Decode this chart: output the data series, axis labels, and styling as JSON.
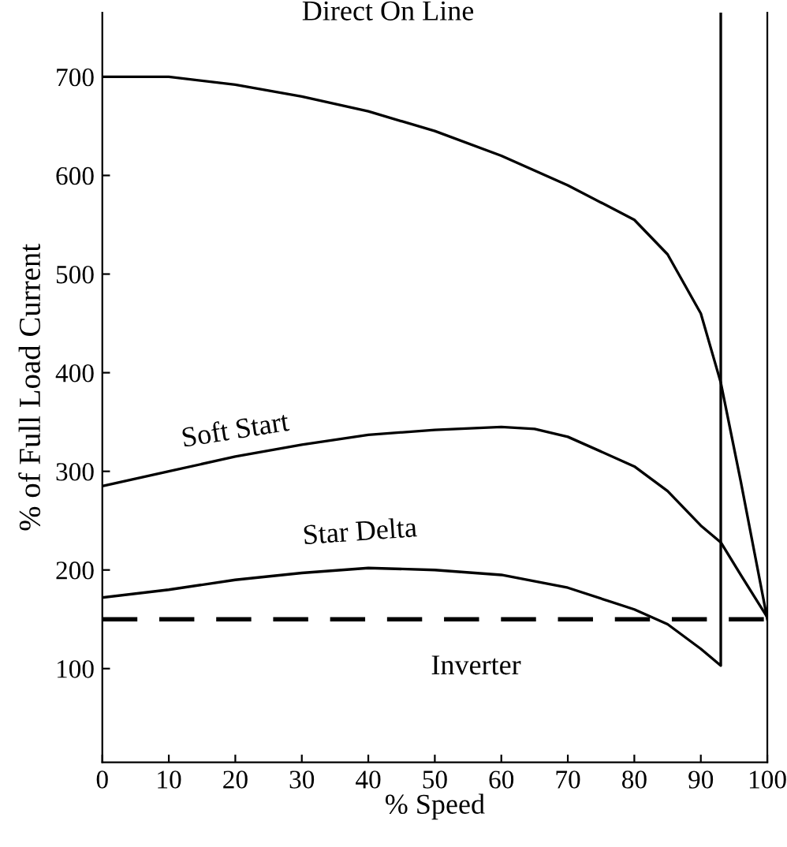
{
  "chart_data": {
    "type": "line",
    "xlabel": "% Speed",
    "ylabel": "% of Full Load Current",
    "xlim": [
      0,
      100
    ],
    "ylim": [
      5,
      765
    ],
    "xticks": [
      0,
      10,
      20,
      30,
      40,
      50,
      60,
      70,
      80,
      90,
      100
    ],
    "yticks": [
      100,
      200,
      300,
      400,
      500,
      600,
      700
    ],
    "grid": false,
    "legend": false,
    "marker": "none",
    "series": [
      {
        "name": "Direct On Line",
        "x": [
          0,
          10,
          20,
          30,
          40,
          50,
          60,
          70,
          80,
          85,
          90,
          93,
          96,
          98,
          100
        ],
        "values": [
          700,
          700,
          692,
          680,
          665,
          645,
          620,
          590,
          555,
          520,
          460,
          390,
          290,
          220,
          150
        ],
        "color": "#000000",
        "line_style": "solid"
      },
      {
        "name": "Soft Start",
        "x": [
          0,
          10,
          20,
          30,
          40,
          50,
          60,
          65,
          70,
          80,
          85,
          90,
          93,
          96,
          100
        ],
        "values": [
          285,
          300,
          315,
          327,
          337,
          342,
          345,
          343,
          335,
          305,
          280,
          245,
          228,
          195,
          152
        ],
        "color": "#000000",
        "line_style": "solid"
      },
      {
        "name": "Star Delta",
        "x": [
          0,
          10,
          20,
          30,
          40,
          50,
          60,
          70,
          80,
          85,
          90,
          93,
          93
        ],
        "values": [
          172,
          180,
          190,
          197,
          202,
          200,
          195,
          182,
          160,
          145,
          120,
          103,
          765
        ],
        "color": "#000000",
        "line_style": "solid"
      },
      {
        "name": "Inverter",
        "x": [
          0,
          100
        ],
        "values": [
          150,
          150
        ],
        "color": "#000000",
        "line_style": "dashed"
      }
    ]
  }
}
